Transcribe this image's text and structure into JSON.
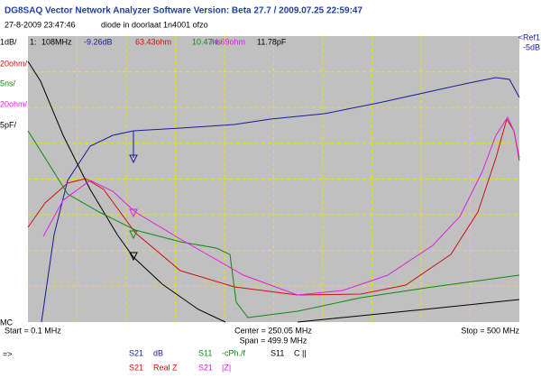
{
  "header": {
    "title": "DG8SAQ Vector Network Analyzer Software   Version:  Beta 27.7 / 2009.07.25 22:59:47",
    "timestamp": "27-8-2009   23:47:46",
    "comment": "diode in doorlaat  1n4001 ofzo"
  },
  "marker": {
    "id": "1:",
    "frequency": "108MHz",
    "readouts": [
      "-9.26dB",
      "63.43ohm",
      "10.47ns",
      "74.69ohm",
      "11.78pF"
    ]
  },
  "scales": {
    "left": [
      "1dB/",
      "20ohm/",
      "5ns/",
      "20ohm/",
      "5pF/"
    ],
    "mc": "MC",
    "ref": "<Ref1",
    "ref_value": "-5dB"
  },
  "footer": {
    "start": "Start = 0.1 MHz",
    "center": "Center = 250.05 MHz",
    "span": "Span = 499.9 MHz",
    "stop": "Stop = 500 MHz"
  },
  "legend": {
    "arrow": "=>",
    "rows": [
      [
        [
          "S21",
          "dB"
        ],
        [
          "S11",
          "-cPh./f"
        ],
        [
          "S11",
          "C ||"
        ]
      ],
      [
        [
          "S21",
          "Real Z"
        ],
        [
          "S21",
          "|Z|"
        ]
      ]
    ]
  }
}
